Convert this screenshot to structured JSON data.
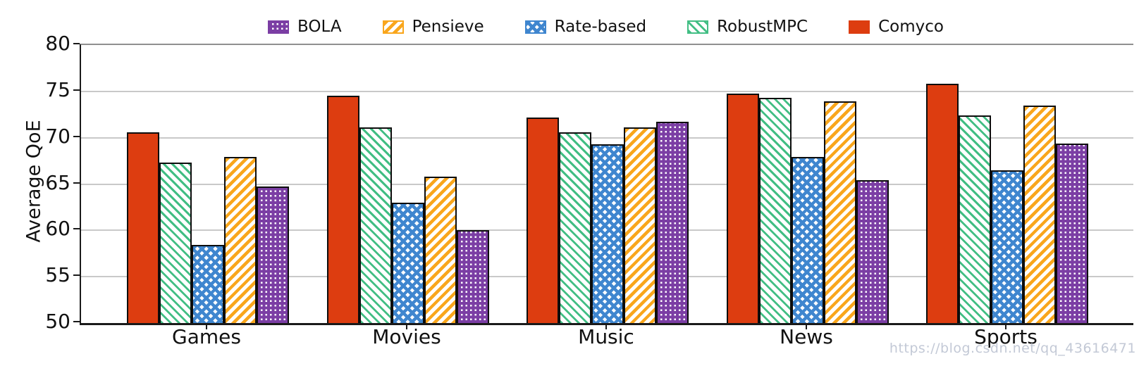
{
  "watermark": "https://blog.csdn.net/qq_43616471",
  "chart_data": {
    "type": "bar",
    "title": "",
    "xlabel": "",
    "ylabel": "Average QoE",
    "ylim": [
      50,
      80
    ],
    "yticks": [
      50,
      55,
      60,
      65,
      70,
      75,
      80
    ],
    "grid": true,
    "legend_position": "top-center",
    "categories": [
      "Games",
      "Movies",
      "Music",
      "News",
      "Sports"
    ],
    "series": [
      {
        "name": "BOLA",
        "color": "#7B3EA4",
        "pattern": "grid",
        "values": [
          64.7,
          60.0,
          71.7,
          65.4,
          69.4
        ]
      },
      {
        "name": "Pensieve",
        "color": "#F9A61C",
        "pattern": "diag-up",
        "values": [
          67.9,
          65.8,
          71.1,
          73.9,
          73.5
        ]
      },
      {
        "name": "Rate-based",
        "color": "#3F86CF",
        "pattern": "cross-diag",
        "values": [
          58.4,
          63.0,
          69.3,
          67.9,
          66.5
        ]
      },
      {
        "name": "RobustMPC",
        "color": "#42BE84",
        "pattern": "diag-down",
        "values": [
          67.3,
          71.1,
          70.6,
          74.3,
          72.4
        ]
      },
      {
        "name": "Comyco",
        "color": "#DD3D10",
        "pattern": "solid",
        "values": [
          70.6,
          74.5,
          72.2,
          74.8,
          75.8
        ]
      }
    ],
    "bar_draw_order": [
      "Comyco",
      "RobustMPC",
      "Rate-based",
      "Pensieve",
      "BOLA"
    ]
  }
}
